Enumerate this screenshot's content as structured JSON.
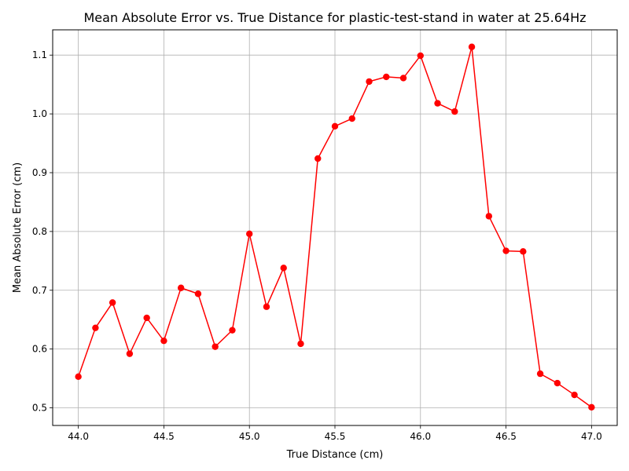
{
  "chart_data": {
    "type": "line",
    "title": "Mean Absolute Error vs. True Distance for plastic-test-stand in water at 25.64Hz",
    "xlabel": "True Distance (cm)",
    "ylabel": "Mean Absolute Error (cm)",
    "xlim": [
      43.85,
      47.15
    ],
    "ylim": [
      0.47,
      1.143
    ],
    "xticks": [
      "44.0",
      "44.5",
      "45.0",
      "45.5",
      "46.0",
      "46.5",
      "47.0"
    ],
    "yticks": [
      "0.5",
      "0.6",
      "0.7",
      "0.8",
      "0.9",
      "1.0",
      "1.1"
    ],
    "grid": true,
    "color": "#ff0000",
    "marker": "circle",
    "x": [
      44.0,
      44.1,
      44.2,
      44.3,
      44.4,
      44.5,
      44.6,
      44.7,
      44.8,
      44.9,
      45.0,
      45.1,
      45.2,
      45.3,
      45.4,
      45.5,
      45.6,
      45.7,
      45.8,
      45.9,
      46.0,
      46.1,
      46.2,
      46.3,
      46.4,
      46.5,
      46.6,
      46.7,
      46.8,
      46.9,
      47.0
    ],
    "y": [
      0.553,
      0.636,
      0.679,
      0.592,
      0.653,
      0.614,
      0.704,
      0.694,
      0.604,
      0.632,
      0.796,
      0.672,
      0.738,
      0.609,
      0.924,
      0.979,
      0.992,
      1.055,
      1.063,
      1.061,
      1.099,
      1.018,
      1.004,
      1.114,
      0.826,
      0.767,
      0.766,
      0.558,
      0.542,
      0.522,
      0.501
    ]
  }
}
